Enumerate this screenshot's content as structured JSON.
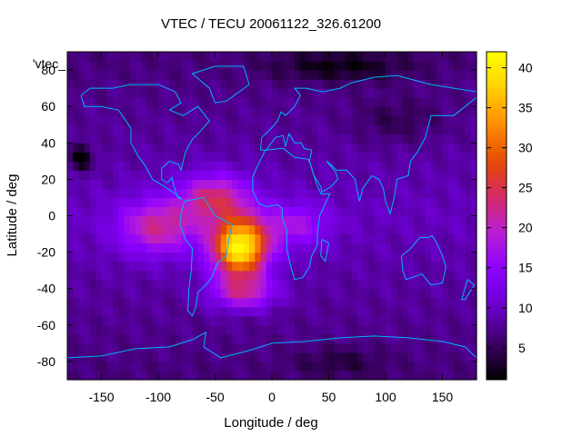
{
  "chart_data": {
    "type": "heatmap",
    "title": "VTEC / TECU 20061122_326.61200",
    "xlabel": "Longitude / deg",
    "ylabel": "Latitude / deg",
    "key_label": "'vtec_",
    "xlim": [
      -180,
      180
    ],
    "ylim": [
      -90,
      90
    ],
    "x_ticks": [
      -150,
      -100,
      -50,
      0,
      50,
      100,
      150
    ],
    "y_ticks": [
      -80,
      -60,
      -40,
      -20,
      0,
      20,
      40,
      60,
      80
    ],
    "colorbar": {
      "range": [
        1,
        42
      ],
      "ticks": [
        5,
        10,
        15,
        20,
        25,
        30,
        35,
        40
      ],
      "palette": [
        "#000000",
        "#3d0066",
        "#6a00cc",
        "#8b00ff",
        "#b81ed6",
        "#d4286a",
        "#e44a00",
        "#ff8c00",
        "#ffd000",
        "#ffff00"
      ]
    },
    "field": {
      "background": 9,
      "features": [
        {
          "name": "equatorial anomaly",
          "lon": -30,
          "lat": -18,
          "peak_tecu": 42
        },
        {
          "name": "anomaly north crest",
          "lon": -45,
          "lat": 12,
          "peak_tecu": 28
        },
        {
          "name": "anomaly west extension",
          "lon": -110,
          "lat": -8,
          "peak_tecu": 24
        },
        {
          "name": "anomaly south crest",
          "lon": -20,
          "lat": -42,
          "peak_tecu": 25
        },
        {
          "name": "low region north Pacific",
          "lon": -165,
          "lat": 30,
          "peak_tecu": 1
        },
        {
          "name": "low region north polar",
          "lon": 60,
          "lat": 82,
          "peak_tecu": 3
        },
        {
          "name": "low region Asia",
          "lon": 100,
          "lat": 55,
          "peak_tecu": 5
        }
      ]
    },
    "coastline_color": "#00b4ff"
  }
}
